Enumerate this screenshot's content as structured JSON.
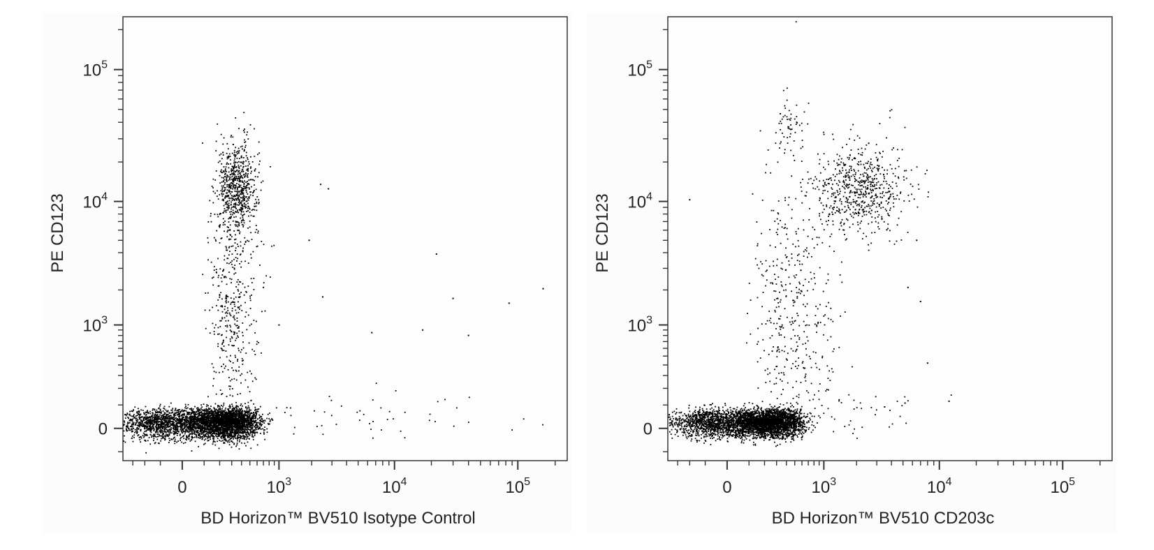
{
  "chart_data": [
    {
      "type": "scatter",
      "title": "",
      "xlabel": "BD Horizon™ BV510 Isotype Control",
      "ylabel": "PE CD123",
      "x_scale": "biexponential",
      "y_scale": "biexponential",
      "xlim": [
        -400,
        250000
      ],
      "ylim": [
        -150,
        250000
      ],
      "x_ticks": [
        {
          "value": 0,
          "base": "0",
          "exp": ""
        },
        {
          "value": 1000,
          "base": "10",
          "exp": "3"
        },
        {
          "value": 10000,
          "base": "10",
          "exp": "4"
        },
        {
          "value": 100000,
          "base": "10",
          "exp": "5"
        }
      ],
      "y_ticks": [
        {
          "value": 0,
          "base": "0",
          "exp": ""
        },
        {
          "value": 1000,
          "base": "10",
          "exp": "3"
        },
        {
          "value": 10000,
          "base": "10",
          "exp": "4"
        },
        {
          "value": 100000,
          "base": "10",
          "exp": "5"
        }
      ],
      "grid": false,
      "legend": "none",
      "point_color": "#000000",
      "populations": [
        {
          "x_center": 150,
          "y_center": 20,
          "x_spread": 220,
          "y_spread": 30,
          "count": 4200
        },
        {
          "x_center": 350,
          "y_center": 13000,
          "x_spread": 0.12,
          "y_spread": 0.17,
          "count": 650
        },
        {
          "x_center": 300,
          "y_center": 1800,
          "x_spread": 0.16,
          "y_spread": 0.55,
          "count": 450
        },
        {
          "x_center": 5000,
          "y_center": 60,
          "x_spread": 0.8,
          "y_spread": 60,
          "count": 60
        }
      ],
      "outliers": [
        [
          2400,
          13500
        ],
        [
          2800,
          12500
        ],
        [
          1900,
          5000
        ],
        [
          22000,
          3900
        ],
        [
          160000,
          2050
        ],
        [
          30000,
          1700
        ],
        [
          85000,
          1550
        ],
        [
          6500,
          850
        ],
        [
          40000,
          800
        ],
        [
          17000,
          900
        ],
        [
          2500,
          1750
        ],
        [
          700,
          2100
        ],
        [
          1000,
          1000
        ]
      ]
    },
    {
      "type": "scatter",
      "title": "",
      "xlabel": "BD Horizon™ BV510 CD203c",
      "ylabel": "PE CD123",
      "x_scale": "biexponential",
      "y_scale": "biexponential",
      "xlim": [
        -400,
        250000
      ],
      "ylim": [
        -150,
        250000
      ],
      "x_ticks": [
        {
          "value": 0,
          "base": "0",
          "exp": ""
        },
        {
          "value": 1000,
          "base": "10",
          "exp": "3"
        },
        {
          "value": 10000,
          "base": "10",
          "exp": "4"
        },
        {
          "value": 100000,
          "base": "10",
          "exp": "5"
        }
      ],
      "y_ticks": [
        {
          "value": 0,
          "base": "0",
          "exp": ""
        },
        {
          "value": 1000,
          "base": "10",
          "exp": "3"
        },
        {
          "value": 10000,
          "base": "10",
          "exp": "4"
        },
        {
          "value": 100000,
          "base": "10",
          "exp": "5"
        }
      ],
      "grid": false,
      "legend": "none",
      "point_color": "#000000",
      "populations": [
        {
          "x_center": 150,
          "y_center": 20,
          "x_spread": 210,
          "y_spread": 28,
          "count": 4000
        },
        {
          "x_center": 2100,
          "y_center": 12500,
          "x_spread": 0.2,
          "y_spread": 0.17,
          "count": 650
        },
        {
          "x_center": 420,
          "y_center": 38000,
          "x_spread": 0.1,
          "y_spread": 0.1,
          "count": 50
        },
        {
          "x_center": 450,
          "y_center": 1400,
          "x_spread": 0.25,
          "y_spread": 0.6,
          "count": 420
        },
        {
          "x_center": 1200,
          "y_center": 60,
          "x_spread": 0.5,
          "y_spread": 60,
          "count": 50
        }
      ],
      "outliers": [
        [
          -200,
          10300
        ],
        [
          5500,
          2100
        ],
        [
          7000,
          1600
        ],
        [
          8000,
          420
        ],
        [
          12000,
          120
        ],
        [
          6500,
          5000
        ],
        [
          5200,
          110
        ],
        [
          3500,
          90
        ]
      ]
    }
  ]
}
